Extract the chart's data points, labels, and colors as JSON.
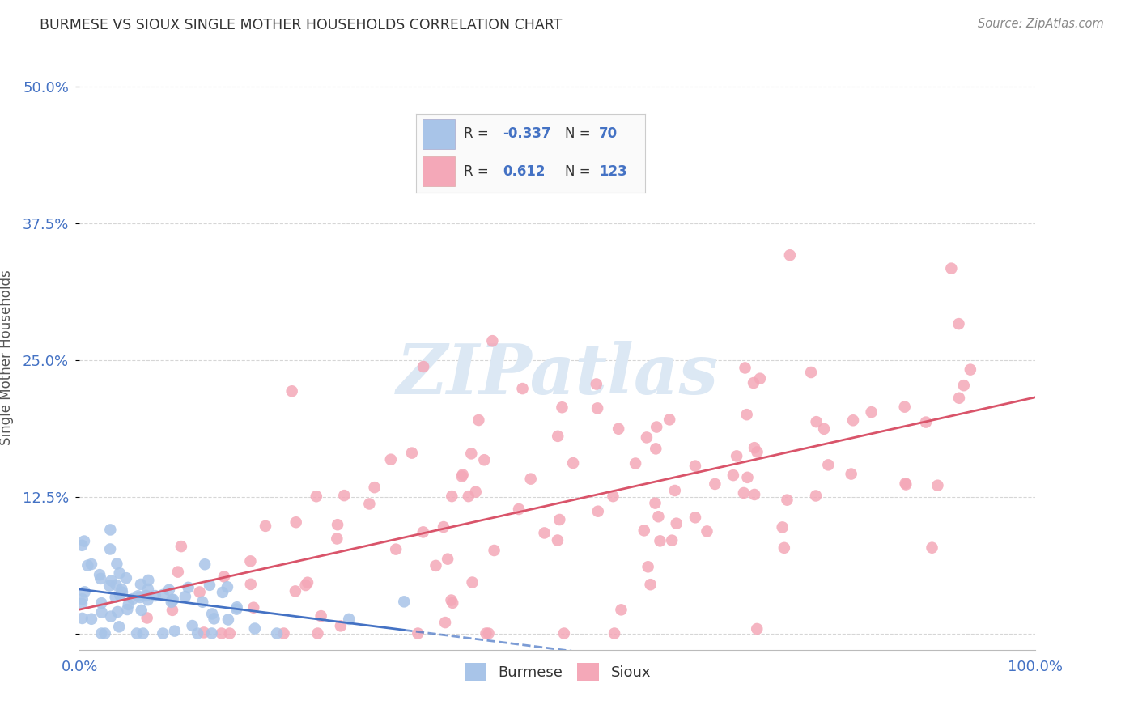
{
  "title": "BURMESE VS SIOUX SINGLE MOTHER HOUSEHOLDS CORRELATION CHART",
  "source": "Source: ZipAtlas.com",
  "ylabel": "Single Mother Households",
  "watermark": "ZIPatlas",
  "xlim": [
    0,
    1.0
  ],
  "ylim": [
    -0.015,
    0.52
  ],
  "yticks": [
    0.0,
    0.125,
    0.25,
    0.375,
    0.5
  ],
  "ytick_labels": [
    "",
    "12.5%",
    "25.0%",
    "37.5%",
    "50.0%"
  ],
  "burmese_color": "#a8c4e8",
  "sioux_color": "#f4a8b8",
  "burmese_line_color": "#4472c4",
  "sioux_line_color": "#d9546a",
  "background_color": "#ffffff",
  "grid_color": "#cccccc",
  "title_color": "#333333",
  "axis_label_color": "#4472c4"
}
